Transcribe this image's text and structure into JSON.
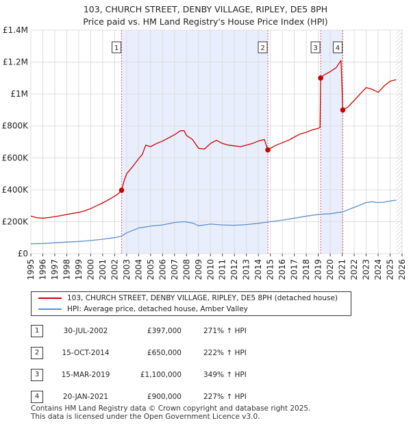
{
  "title": {
    "line1": "103, CHURCH STREET, DENBY VILLAGE, RIPLEY, DE5 8PH",
    "line2": "Price paid vs. HM Land Registry's House Price Index (HPI)"
  },
  "chart_data": {
    "type": "line",
    "xlim": [
      1995,
      2026
    ],
    "ylim": [
      0,
      1400000
    ],
    "x_ticks": [
      1995,
      1996,
      1997,
      1998,
      1999,
      2000,
      2001,
      2002,
      2003,
      2004,
      2005,
      2006,
      2007,
      2008,
      2009,
      2010,
      2011,
      2012,
      2013,
      2014,
      2015,
      2016,
      2017,
      2018,
      2019,
      2020,
      2021,
      2022,
      2023,
      2024,
      2025,
      2026
    ],
    "y_ticks": [
      {
        "value": 0,
        "label": "£0"
      },
      {
        "value": 200000,
        "label": "£200K"
      },
      {
        "value": 400000,
        "label": "£400K"
      },
      {
        "value": 600000,
        "label": "£600K"
      },
      {
        "value": 800000,
        "label": "£800K"
      },
      {
        "value": 1000000,
        "label": "£1M"
      },
      {
        "value": 1200000,
        "label": "£1.2M"
      },
      {
        "value": 1400000,
        "label": "£1.4M"
      }
    ],
    "colors": {
      "property": "#cc0000",
      "hpi": "#5b8fd1",
      "shade": "#e8eefb",
      "grid": "#dddddd",
      "marker_line": "#e05a5a"
    },
    "shaded_periods": [
      [
        2002.58,
        2014.79
      ],
      [
        2019.2,
        2021.05
      ]
    ],
    "hatched_from": 2025.5,
    "series": [
      {
        "name": "103, CHURCH STREET, DENBY VILLAGE, RIPLEY, DE5 8PH (detached house)",
        "color": "#cc0000",
        "points": [
          [
            1995.0,
            235000
          ],
          [
            1995.5,
            225000
          ],
          [
            1996.0,
            222000
          ],
          [
            1996.5,
            226000
          ],
          [
            1997.0,
            232000
          ],
          [
            1997.5,
            238000
          ],
          [
            1998.0,
            245000
          ],
          [
            1998.5,
            252000
          ],
          [
            1999.0,
            258000
          ],
          [
            1999.5,
            268000
          ],
          [
            2000.0,
            282000
          ],
          [
            2000.5,
            300000
          ],
          [
            2001.0,
            318000
          ],
          [
            2001.5,
            338000
          ],
          [
            2002.0,
            360000
          ],
          [
            2002.3,
            375000
          ],
          [
            2002.58,
            397000
          ],
          [
            2002.8,
            460000
          ],
          [
            2003.0,
            500000
          ],
          [
            2003.5,
            545000
          ],
          [
            2004.0,
            595000
          ],
          [
            2004.3,
            620000
          ],
          [
            2004.6,
            680000
          ],
          [
            2005.0,
            670000
          ],
          [
            2005.5,
            690000
          ],
          [
            2006.0,
            705000
          ],
          [
            2006.5,
            725000
          ],
          [
            2007.0,
            745000
          ],
          [
            2007.5,
            770000
          ],
          [
            2007.8,
            770000
          ],
          [
            2008.0,
            740000
          ],
          [
            2008.5,
            715000
          ],
          [
            2009.0,
            660000
          ],
          [
            2009.5,
            655000
          ],
          [
            2010.0,
            690000
          ],
          [
            2010.5,
            710000
          ],
          [
            2011.0,
            690000
          ],
          [
            2011.5,
            680000
          ],
          [
            2012.0,
            675000
          ],
          [
            2012.5,
            670000
          ],
          [
            2013.0,
            680000
          ],
          [
            2013.5,
            690000
          ],
          [
            2014.0,
            705000
          ],
          [
            2014.5,
            715000
          ],
          [
            2014.79,
            650000
          ],
          [
            2015.0,
            660000
          ],
          [
            2015.5,
            680000
          ],
          [
            2016.0,
            695000
          ],
          [
            2016.5,
            710000
          ],
          [
            2017.0,
            730000
          ],
          [
            2017.5,
            750000
          ],
          [
            2018.0,
            760000
          ],
          [
            2018.5,
            775000
          ],
          [
            2019.0,
            785000
          ],
          [
            2019.15,
            790000
          ],
          [
            2019.2,
            1100000
          ],
          [
            2019.5,
            1120000
          ],
          [
            2020.0,
            1140000
          ],
          [
            2020.5,
            1165000
          ],
          [
            2020.9,
            1210000
          ],
          [
            2021.05,
            900000
          ],
          [
            2021.5,
            920000
          ],
          [
            2022.0,
            960000
          ],
          [
            2022.5,
            1000000
          ],
          [
            2023.0,
            1040000
          ],
          [
            2023.5,
            1030000
          ],
          [
            2024.0,
            1010000
          ],
          [
            2024.5,
            1050000
          ],
          [
            2025.0,
            1080000
          ],
          [
            2025.5,
            1090000
          ]
        ]
      },
      {
        "name": "HPI: Average price, detached house, Amber Valley",
        "color": "#5b8fd1",
        "points": [
          [
            1995.0,
            62000
          ],
          [
            1996.0,
            63000
          ],
          [
            1997.0,
            68000
          ],
          [
            1998.0,
            72000
          ],
          [
            1999.0,
            76000
          ],
          [
            2000.0,
            82000
          ],
          [
            2001.0,
            90000
          ],
          [
            2002.0,
            100000
          ],
          [
            2002.58,
            110000
          ],
          [
            2003.0,
            130000
          ],
          [
            2004.0,
            160000
          ],
          [
            2005.0,
            172000
          ],
          [
            2006.0,
            180000
          ],
          [
            2007.0,
            195000
          ],
          [
            2007.8,
            200000
          ],
          [
            2008.5,
            192000
          ],
          [
            2009.0,
            175000
          ],
          [
            2009.5,
            180000
          ],
          [
            2010.0,
            185000
          ],
          [
            2011.0,
            180000
          ],
          [
            2012.0,
            178000
          ],
          [
            2013.0,
            182000
          ],
          [
            2014.0,
            190000
          ],
          [
            2014.79,
            198000
          ],
          [
            2015.0,
            200000
          ],
          [
            2016.0,
            210000
          ],
          [
            2017.0,
            222000
          ],
          [
            2018.0,
            235000
          ],
          [
            2019.0,
            245000
          ],
          [
            2019.2,
            247000
          ],
          [
            2020.0,
            250000
          ],
          [
            2021.05,
            262000
          ],
          [
            2022.0,
            290000
          ],
          [
            2023.0,
            320000
          ],
          [
            2023.5,
            325000
          ],
          [
            2024.0,
            320000
          ],
          [
            2024.5,
            322000
          ],
          [
            2025.0,
            330000
          ],
          [
            2025.5,
            335000
          ]
        ]
      }
    ],
    "sales": [
      {
        "label": "1",
        "x": 2002.58,
        "value": 397000
      },
      {
        "label": "2",
        "x": 2014.79,
        "value": 650000
      },
      {
        "label": "3",
        "x": 2019.2,
        "value": 1100000
      },
      {
        "label": "4",
        "x": 2021.05,
        "value": 900000
      }
    ]
  },
  "legend": {
    "property_label": "103, CHURCH STREET, DENBY VILLAGE, RIPLEY, DE5 8PH (detached house)",
    "hpi_label": "HPI: Average price, detached house, Amber Valley"
  },
  "sales_table": [
    {
      "num": "1",
      "date": "30-JUL-2002",
      "price": "£397,000",
      "hpi": "271% ↑ HPI"
    },
    {
      "num": "2",
      "date": "15-OCT-2014",
      "price": "£650,000",
      "hpi": "222% ↑ HPI"
    },
    {
      "num": "3",
      "date": "15-MAR-2019",
      "price": "£1,100,000",
      "hpi": "349% ↑ HPI"
    },
    {
      "num": "4",
      "date": "20-JAN-2021",
      "price": "£900,000",
      "hpi": "227% ↑ HPI"
    }
  ],
  "footer": {
    "line1": "Contains HM Land Registry data © Crown copyright and database right 2025.",
    "line2": "This data is licensed under the Open Government Licence v3.0."
  }
}
